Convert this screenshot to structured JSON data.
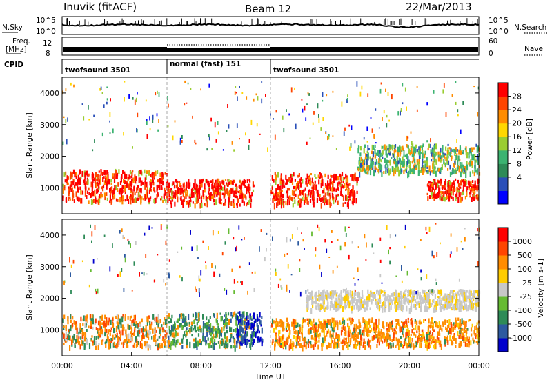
{
  "header": {
    "station": "Inuvik (fitACF)",
    "beam": "Beam 12",
    "date": "22/Mar/2013"
  },
  "chart_data": [
    {
      "type": "line",
      "panel": "noise",
      "left_label": "N.Sky",
      "right_label": "N.Search",
      "left_ticks": [
        "10^5",
        "10^0"
      ],
      "right_ticks": [
        "10^5",
        "10^0"
      ],
      "series": [
        {
          "name": "N.Sky",
          "style": "solid"
        },
        {
          "name": "N.Search",
          "style": "dotted"
        }
      ]
    },
    {
      "type": "line",
      "panel": "frequency",
      "left_label_lines": [
        "Freq.",
        "[MHz]"
      ],
      "right_label": "Nave",
      "left_ticks": [
        "12",
        "8"
      ],
      "right_ticks": [
        "60",
        "0"
      ],
      "series": [
        {
          "name": "Freq.",
          "style": "solid"
        },
        {
          "name": "Nave",
          "style": "dotted"
        }
      ]
    },
    {
      "type": "table",
      "panel": "cpid",
      "label": "CPID",
      "segments": [
        {
          "name": "twofsound 3501",
          "start": 0,
          "end": 6
        },
        {
          "name": "normal (fast) 151",
          "start": 6,
          "end": 12
        },
        {
          "name": "twofsound 3501",
          "start": 12,
          "end": 24
        }
      ]
    },
    {
      "type": "heatmap",
      "panel": "power",
      "ylabel": "Slant Range [km]",
      "xlim": [
        0,
        24
      ],
      "ylim": [
        180,
        4500
      ],
      "yticks": [
        "1000",
        "2000",
        "3000",
        "4000"
      ],
      "colorbar": {
        "label": "Power [dB]",
        "ticks": [
          "28",
          "24",
          "20",
          "16",
          "12",
          "8",
          "4"
        ],
        "colors": [
          "#0000ff",
          "#2a4fb8",
          "#2e8b57",
          "#3cb371",
          "#9acd32",
          "#ffd700",
          "#ff8c00",
          "#ff4500",
          "#ff0000"
        ]
      },
      "bands": [
        {
          "start": 0,
          "end": 6,
          "rmin": 600,
          "rmax": 1600,
          "dominant": "red"
        },
        {
          "start": 6,
          "end": 11,
          "rmin": 500,
          "rmax": 1300,
          "dominant": "red"
        },
        {
          "start": 12,
          "end": 17,
          "rmin": 500,
          "rmax": 1500,
          "dominant": "red"
        },
        {
          "start": 17,
          "end": 24,
          "rmin": 1500,
          "rmax": 2400,
          "dominant": "green"
        },
        {
          "start": 21,
          "end": 24,
          "rmin": 700,
          "rmax": 1300,
          "dominant": "red"
        }
      ]
    },
    {
      "type": "heatmap",
      "panel": "velocity",
      "ylabel": "Slant Range [km]",
      "xlabel": "Time UT",
      "xlim": [
        0,
        24
      ],
      "ylim": [
        180,
        4500
      ],
      "xticks": [
        "00:00",
        "04:00",
        "08:00",
        "12:00",
        "16:00",
        "20:00",
        "00:00"
      ],
      "yticks": [
        "1000",
        "2000",
        "3000",
        "4000"
      ],
      "colorbar": {
        "label": "Velocity [m s-1]",
        "ticks": [
          "1000",
          "500",
          "100",
          "25",
          "-25",
          "-100",
          "-500",
          "-1000"
        ],
        "colors": [
          "#0000cc",
          "#2d5aa0",
          "#2e8b57",
          "#66bb33",
          "#c8c8c8",
          "#ffcc00",
          "#ff8c00",
          "#ff4500",
          "#ff0000"
        ]
      },
      "bands": [
        {
          "start": 0,
          "end": 6,
          "rmin": 500,
          "rmax": 1500,
          "dominant": "orange/green"
        },
        {
          "start": 6,
          "end": 11,
          "rmin": 500,
          "rmax": 1600,
          "dominant": "green"
        },
        {
          "start": 10,
          "end": 11.5,
          "rmin": 600,
          "rmax": 1600,
          "dominant": "blue"
        },
        {
          "start": 12,
          "end": 24,
          "rmin": 500,
          "rmax": 1400,
          "dominant": "orange"
        },
        {
          "start": 14,
          "end": 24,
          "rmin": 1700,
          "rmax": 2300,
          "dominant": "grey"
        }
      ]
    }
  ]
}
